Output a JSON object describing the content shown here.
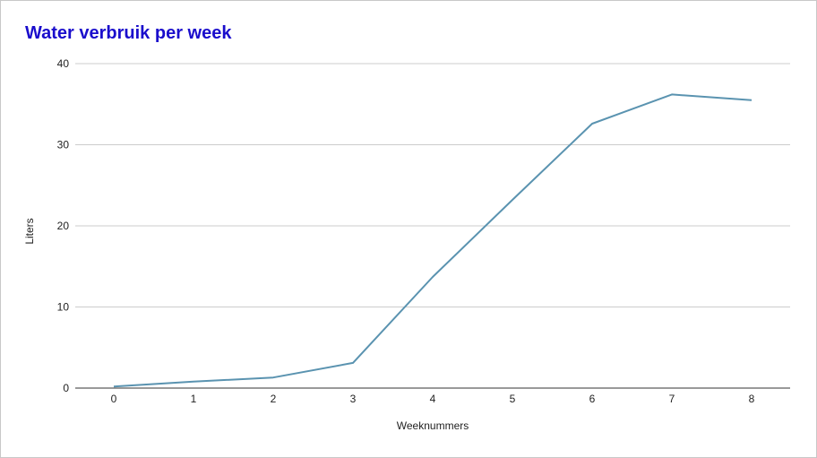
{
  "chart_data": {
    "type": "line",
    "title": "Water verbruik per week",
    "xlabel": "Weeknummers",
    "ylabel": "Liters",
    "x": [
      0,
      1,
      2,
      3,
      4,
      5,
      6,
      7,
      8
    ],
    "series": [
      {
        "values": [
          0.2,
          0.8,
          1.3,
          3.1,
          13.7,
          23.2,
          32.6,
          36.2,
          35.5
        ]
      }
    ],
    "xlim": [
      0,
      8
    ],
    "ylim": [
      0,
      40
    ],
    "yticks": [
      0,
      10,
      20,
      30,
      40
    ],
    "grid": true,
    "legend": "none",
    "colors": {
      "title": "#1a0dcc",
      "line": "#5a93b0",
      "grid": "#cccccc",
      "axis": "#333333"
    }
  }
}
